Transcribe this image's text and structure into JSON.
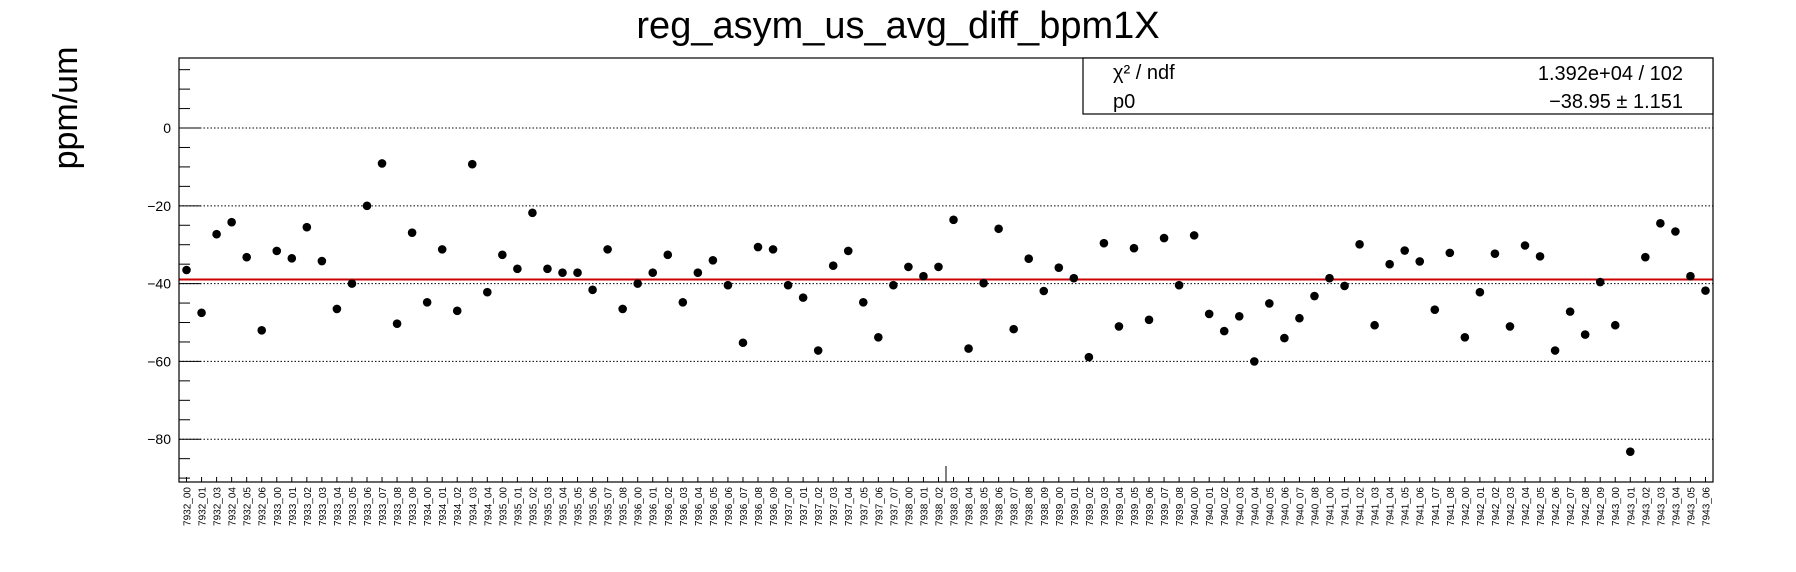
{
  "chart_data": {
    "type": "scatter",
    "title": "reg_asym_us_avg_diff_bpm1X",
    "xlabel": "",
    "ylabel": "ppm/um",
    "ylim": [
      -91,
      18
    ],
    "y_ticks": [
      0,
      -20,
      -40,
      -60,
      -80
    ],
    "y_tick_labels": [
      "0",
      "−20",
      "−40",
      "−60",
      "−80"
    ],
    "grid": true,
    "categories": [
      "7932_00",
      "7932_01",
      "7932_03",
      "7932_04",
      "7932_05",
      "7932_06",
      "7933_00",
      "7933_01",
      "7933_02",
      "7933_03",
      "7933_04",
      "7933_05",
      "7933_06",
      "7933_07",
      "7933_08",
      "7933_09",
      "7934_00",
      "7934_01",
      "7934_02",
      "7934_03",
      "7934_04",
      "7935_00",
      "7935_01",
      "7935_02",
      "7935_03",
      "7935_04",
      "7935_05",
      "7935_06",
      "7935_07",
      "7935_08",
      "7936_00",
      "7936_01",
      "7936_02",
      "7936_03",
      "7936_04",
      "7936_05",
      "7936_06",
      "7936_07",
      "7936_08",
      "7936_09",
      "7937_00",
      "7937_01",
      "7937_02",
      "7937_03",
      "7937_04",
      "7937_05",
      "7937_06",
      "7937_07",
      "7938_00",
      "7938_01",
      "7938_02",
      "7938_03",
      "7938_04",
      "7938_05",
      "7938_06",
      "7938_07",
      "7938_08",
      "7938_09",
      "7939_00",
      "7939_01",
      "7939_02",
      "7939_03",
      "7939_04",
      "7939_05",
      "7939_06",
      "7939_07",
      "7939_08",
      "7940_00",
      "7940_01",
      "7940_02",
      "7940_03",
      "7940_04",
      "7940_05",
      "7940_06",
      "7940_07",
      "7940_08",
      "7941_00",
      "7941_01",
      "7941_02",
      "7941_03",
      "7941_04",
      "7941_05",
      "7941_06",
      "7941_07",
      "7941_08",
      "7942_00",
      "7942_01",
      "7942_02",
      "7942_03",
      "7942_04",
      "7942_05",
      "7942_06",
      "7942_07",
      "7942_08",
      "7942_09",
      "7943_00",
      "7943_01",
      "7943_02",
      "7943_03",
      "7943_04",
      "7943_05",
      "7943_06"
    ],
    "series": [
      {
        "color": "#000000",
        "values": [
          -36.5,
          -47.5,
          -27.3,
          -24.2,
          -33.2,
          -52.0,
          -31.6,
          -33.5,
          -25.5,
          -34.2,
          -46.5,
          -40.0,
          -20.0,
          -9.1,
          -50.3,
          -26.9,
          -44.8,
          -31.2,
          -47.0,
          -9.3,
          -42.2,
          -32.6,
          -36.2,
          -21.8,
          -36.2,
          -37.2,
          -37.2,
          -41.6,
          -31.2,
          -46.5,
          -40.0,
          -37.2,
          -32.6,
          -44.8,
          -37.2,
          -34.0,
          -40.4,
          -55.2,
          -30.6,
          -31.2,
          -40.4,
          -43.6,
          -57.2,
          -35.4,
          -31.6,
          -44.8,
          -53.8,
          -40.4,
          -35.7,
          -38.1,
          -35.7,
          -23.6,
          -56.7,
          -39.9,
          -25.9,
          -51.7,
          -33.6,
          -41.9,
          -35.9,
          -38.6,
          -58.9,
          -29.6,
          -51.0,
          -30.9,
          -49.3,
          -28.3,
          -40.4,
          -27.6,
          -47.8,
          -52.2,
          -48.4,
          -60.0,
          -45.1,
          -54.0,
          -48.9,
          -43.2,
          -38.6,
          -40.6,
          -29.9,
          -50.7,
          -35.0,
          -31.5,
          -34.3,
          -46.7,
          -32.1,
          -53.8,
          -42.2,
          -32.3,
          -51.0,
          -30.2,
          -33.0,
          -57.2,
          -47.2,
          -53.1,
          -39.6,
          -50.7,
          -83.2,
          -33.2,
          -24.5,
          -26.6,
          -38.1,
          -41.8
        ]
      }
    ],
    "fit": {
      "p0": -38.95,
      "color": "#cc0000",
      "stats_rows": [
        [
          "χ² / ndf",
          "1.392e+04 / 102"
        ],
        [
          "p0",
          "−38.95 ± 1.151"
        ]
      ]
    }
  }
}
